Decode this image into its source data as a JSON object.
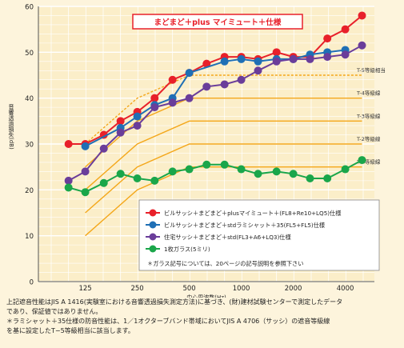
{
  "chart_data": {
    "type": "line",
    "title": "まどまど＋plus マイミュート＋仕様",
    "xlabel": "中心周波数(Hz)",
    "ylabel": "音響透過損失(dB)",
    "ylim": [
      0,
      60
    ],
    "y_ticks": [
      0,
      10,
      20,
      30,
      40,
      50,
      60
    ],
    "x_ticks": [
      "125",
      "250",
      "500",
      "1000",
      "2000",
      "4000"
    ],
    "x": [
      100,
      125,
      160,
      200,
      250,
      315,
      400,
      500,
      630,
      800,
      1000,
      1250,
      1600,
      2000,
      2500,
      3150,
      4000,
      5000
    ],
    "grid": true,
    "series": [
      {
        "name": "ビルサッシ＋まどまど＋plusマイミュート＋(FL8+Re10+LQ5)仕様",
        "color": "#e8202a",
        "values": [
          30,
          30,
          32,
          35,
          37,
          40,
          44,
          45.5,
          47.5,
          49,
          49,
          48.5,
          50,
          49,
          49,
          53,
          55,
          58
        ]
      },
      {
        "name": "ビルサッシ＋まどまど＋stdラミシャット＋35(FL5+FL5)仕様",
        "color": "#1f6fb5",
        "values": [
          null,
          29.5,
          null,
          33.5,
          36,
          38.5,
          40,
          45.5,
          null,
          48,
          48.5,
          48,
          48.5,
          48.5,
          49.5,
          50,
          50.5,
          null
        ]
      },
      {
        "name": "住宅サッシ＋まどまど＋std(FL3+A6+LQ3)仕様",
        "color": "#6a3d9a",
        "values": [
          22,
          24,
          29,
          32.5,
          34,
          38,
          39,
          40,
          42.5,
          43,
          44,
          46,
          48,
          48.5,
          48.5,
          49,
          49.5,
          51.5
        ]
      },
      {
        "name": "1枚ガラス(5ミリ)",
        "color": "#1aa64a",
        "values": [
          20.5,
          19.5,
          21.5,
          23.5,
          22.5,
          22,
          24,
          24.5,
          25.5,
          25.5,
          24.5,
          23.5,
          24,
          23.5,
          22.5,
          22.5,
          24.5,
          26.5
        ]
      }
    ],
    "grade_lines": [
      {
        "label": "T-5等級相当",
        "plateau": 45
      },
      {
        "label": "T-4等級線",
        "plateau": 40
      },
      {
        "label": "T-3等級線",
        "plateau": 35
      },
      {
        "label": "T-2等級線",
        "plateau": 30
      },
      {
        "label": "T-1等級線",
        "plateau": 25
      }
    ],
    "legend_note": "＊ガラス記号については、20ページの記号説明を参照下さい",
    "legend_position": "bottom-right"
  },
  "colors": {
    "grade_line": "#f4a71a",
    "grid": "#ffffff",
    "plot_bg": "#fbeec9"
  },
  "notes": [
    "上記遮音性能はJIS A 1416(実験室における音響透過損失測定方法)に基づき、(財)建材試験センターで測定したデータ",
    "であり、保証値ではありません。",
    "＊ラミシャット＋35仕様の防音性能は、1／1オクターブバンド帯域においてJIS A 4706（サッシ）の遮音等級線",
    "を基に設定したT−5等級相当に該当します。"
  ]
}
